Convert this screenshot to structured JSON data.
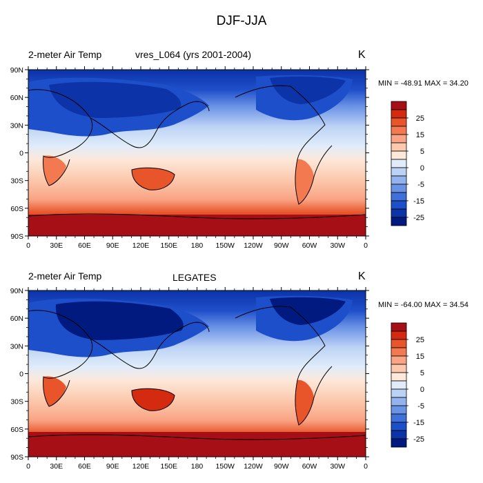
{
  "title": "DJF-JJA",
  "lat_ticks": [
    "90N",
    "60N",
    "30N",
    "0",
    "30S",
    "60S",
    "90S"
  ],
  "lon_ticks": [
    "0",
    "30E",
    "60E",
    "90E",
    "120E",
    "150E",
    "180",
    "150W",
    "120W",
    "90W",
    "60W",
    "30W",
    "0"
  ],
  "colorbar": {
    "labels": [
      "25",
      "15",
      "5",
      "0",
      "-5",
      "-15",
      "-25"
    ],
    "colors": [
      "#a50f15",
      "#d42a10",
      "#e8552a",
      "#f37a50",
      "#f9a484",
      "#fcc9ae",
      "#fde8da",
      "#e0ecfa",
      "#bcd2f5",
      "#92b3ee",
      "#6a92e5",
      "#4070da",
      "#1e4fca",
      "#0c33a8",
      "#001a80"
    ]
  },
  "panels": [
    {
      "variable": "2-meter Air Temp",
      "center": "vres_L064 (yrs 2001-2004)",
      "units": "K",
      "minmax": "MIN = -48.91 MAX =  34.20"
    },
    {
      "variable": "2-meter Air Temp",
      "center": "LEGATES",
      "units": "K",
      "minmax": "MIN = -64.00 MAX =  34.54"
    }
  ]
}
